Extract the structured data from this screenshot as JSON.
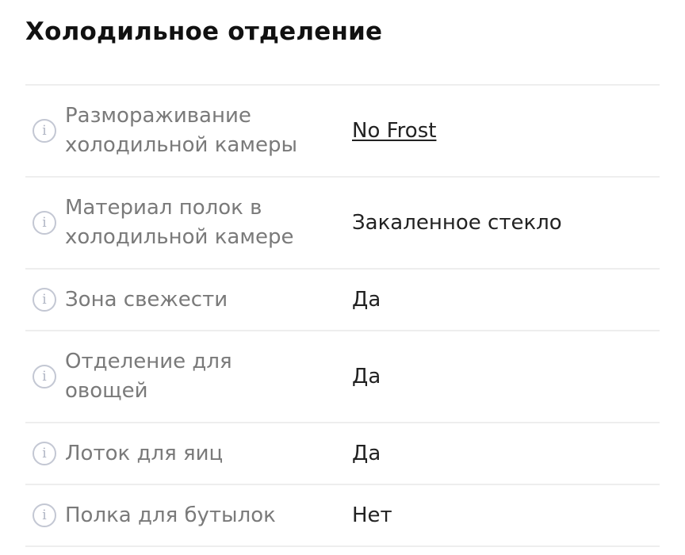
{
  "title": "Холодильное отделение",
  "rows": [
    {
      "label": "Размораживание холодильной камеры",
      "value": "No Frost",
      "link": true,
      "icon": "info-icon"
    },
    {
      "label": "Материал полок в холодильной камере",
      "value": "Закаленное стекло",
      "icon": "info-icon"
    },
    {
      "label": "Зона свежести",
      "value": "Да",
      "icon": "info-icon"
    },
    {
      "label": "Отделение для овощей",
      "value": "Да",
      "icon": "info-icon"
    },
    {
      "label": "Лоток для яиц",
      "value": "Да",
      "icon": "info-icon"
    },
    {
      "label": "Полка для бутылок",
      "value": "Нет",
      "icon": "info-icon"
    }
  ]
}
